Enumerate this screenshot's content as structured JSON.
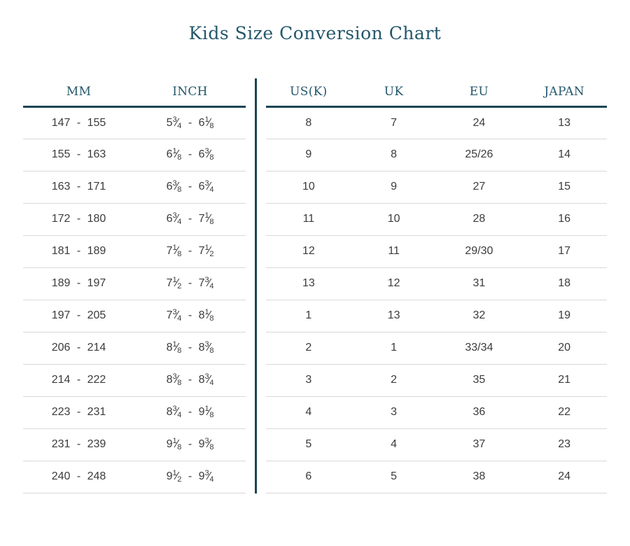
{
  "page": {
    "title": "Kids Size Conversion Chart"
  },
  "colors": {
    "heading_text": "#24576b",
    "rule": "#1b4454",
    "row_divider": "#d8d8d8",
    "cell_text": "#3b3b3b",
    "background": "#ffffff"
  },
  "chart_data": {
    "type": "table",
    "title": "Kids Size Conversion Chart",
    "layout": "two tables side by side separated by vertical rule",
    "tables": [
      {
        "name": "foot-length",
        "headers": [
          "MM",
          "INCH"
        ],
        "fraction_columns": [
          1
        ],
        "rows": [
          [
            "147 - 155",
            "5 3/4 - 6 1/8"
          ],
          [
            "155 - 163",
            "6 1/8 - 6 3/8"
          ],
          [
            "163 - 171",
            "6 3/8 - 6 3/4"
          ],
          [
            "172 - 180",
            "6 3/4 - 7 1/8"
          ],
          [
            "181 - 189",
            "7 1/8 - 7 1/2"
          ],
          [
            "189 - 197",
            "7 1/2 - 7 3/4"
          ],
          [
            "197 - 205",
            "7 3/4 - 8 1/8"
          ],
          [
            "206 - 214",
            "8 1/8 - 8 3/8"
          ],
          [
            "214 - 222",
            "8 3/8 - 8 3/4"
          ],
          [
            "223 - 231",
            "8 3/4 - 9 1/8"
          ],
          [
            "231 - 239",
            "9 1/8 - 9 3/8"
          ],
          [
            "240 - 248",
            "9 1/2 - 9 3/4"
          ]
        ]
      },
      {
        "name": "shoe-sizes",
        "headers": [
          "US(K)",
          "UK",
          "EU",
          "JAPAN"
        ],
        "fraction_columns": [],
        "rows": [
          [
            "8",
            "7",
            "24",
            "13"
          ],
          [
            "9",
            "8",
            "25/26",
            "14"
          ],
          [
            "10",
            "9",
            "27",
            "15"
          ],
          [
            "11",
            "10",
            "28",
            "16"
          ],
          [
            "12",
            "11",
            "29/30",
            "17"
          ],
          [
            "13",
            "12",
            "31",
            "18"
          ],
          [
            "1",
            "13",
            "32",
            "19"
          ],
          [
            "2",
            "1",
            "33/34",
            "20"
          ],
          [
            "3",
            "2",
            "35",
            "21"
          ],
          [
            "4",
            "3",
            "36",
            "22"
          ],
          [
            "5",
            "4",
            "37",
            "23"
          ],
          [
            "6",
            "5",
            "38",
            "24"
          ]
        ]
      }
    ]
  }
}
